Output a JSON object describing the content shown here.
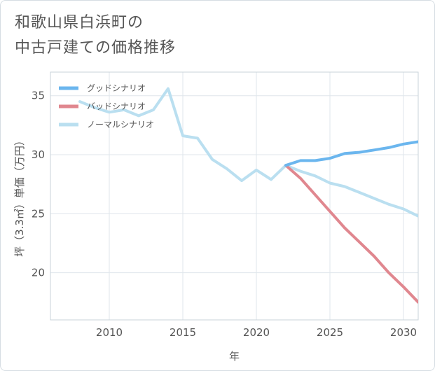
{
  "chart_data": {
    "type": "line",
    "title_lines": [
      "和歌山県白浜町の",
      "中古戸建ての価格推移"
    ],
    "xlabel": "年",
    "ylabel": "坪（3.3㎡）単価（万円）",
    "xlim": [
      2006,
      2031
    ],
    "ylim": [
      16,
      37
    ],
    "x_ticks": [
      2010,
      2015,
      2020,
      2025,
      2030
    ],
    "y_ticks": [
      20,
      25,
      30,
      35
    ],
    "grid": true,
    "legend_position": "top-left",
    "series": [
      {
        "name": "グッドシナリオ",
        "color": "#6bb6ee",
        "x": [
          2022,
          2023,
          2024,
          2025,
          2026,
          2027,
          2028,
          2029,
          2030,
          2031
        ],
        "y": [
          29.1,
          29.5,
          29.5,
          29.7,
          30.1,
          30.2,
          30.4,
          30.6,
          30.9,
          31.1
        ]
      },
      {
        "name": "バッドシナリオ",
        "color": "#e0878f",
        "x": [
          2022,
          2023,
          2024,
          2025,
          2026,
          2027,
          2028,
          2029,
          2030,
          2031
        ],
        "y": [
          29.1,
          28.0,
          26.6,
          25.2,
          23.8,
          22.6,
          21.4,
          20.0,
          18.8,
          17.5
        ]
      },
      {
        "name": "ノーマルシナリオ",
        "color": "#badff0",
        "x": [
          2008,
          2009,
          2010,
          2011,
          2012,
          2013,
          2014,
          2015,
          2016,
          2017,
          2018,
          2019,
          2020,
          2021,
          2022,
          2023,
          2024,
          2025,
          2026,
          2027,
          2028,
          2029,
          2030,
          2031
        ],
        "y": [
          34.5,
          34.0,
          33.6,
          33.8,
          33.3,
          33.8,
          35.6,
          31.6,
          31.4,
          29.6,
          28.8,
          27.8,
          28.7,
          27.9,
          29.1,
          28.6,
          28.2,
          27.6,
          27.3,
          26.8,
          26.3,
          25.8,
          25.4,
          24.8
        ]
      }
    ]
  }
}
